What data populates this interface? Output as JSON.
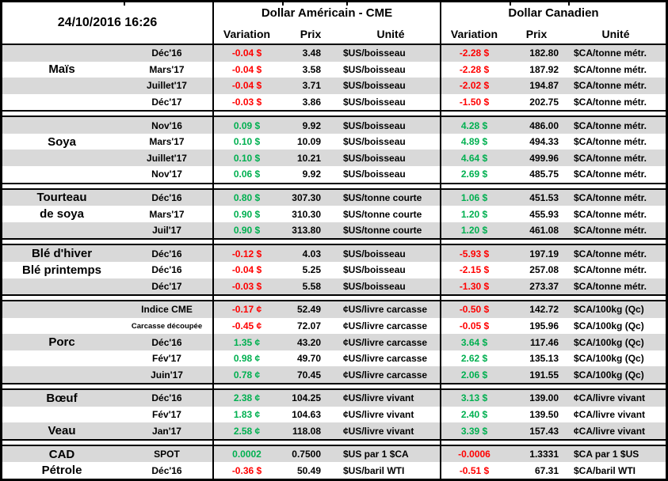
{
  "timestamp": "24/10/2016 16:26",
  "header": {
    "us_title": "Dollar Américain - CME",
    "ca_title": "Dollar Canadien",
    "columns": [
      "Variation",
      "Prix",
      "Unité"
    ]
  },
  "colors": {
    "positive": "#00B050",
    "negative": "#FF0000",
    "stripe": "#D9D9D9",
    "border": "#000000",
    "text": "#000000"
  },
  "sections": [
    {
      "rows": [
        {
          "cat": "",
          "month": "Déc'16",
          "uv": "-0.04 $",
          "ut": "down",
          "up": "3.48",
          "uu": "$US/boisseau",
          "cv": "-2.28 $",
          "ct": "down",
          "cp": "182.80",
          "cu": "$CA/tonne métr."
        },
        {
          "cat": "Maïs",
          "month": "Mars'17",
          "uv": "-0.04 $",
          "ut": "down",
          "up": "3.58",
          "uu": "$US/boisseau",
          "cv": "-2.28 $",
          "ct": "down",
          "cp": "187.92",
          "cu": "$CA/tonne métr."
        },
        {
          "cat": "",
          "month": "Juillet'17",
          "uv": "-0.04 $",
          "ut": "down",
          "up": "3.71",
          "uu": "$US/boisseau",
          "cv": "-2.02 $",
          "ct": "down",
          "cp": "194.87",
          "cu": "$CA/tonne métr."
        },
        {
          "cat": "",
          "month": "Déc'17",
          "uv": "-0.03 $",
          "ut": "down",
          "up": "3.86",
          "uu": "$US/boisseau",
          "cv": "-1.50 $",
          "ct": "down",
          "cp": "202.75",
          "cu": "$CA/tonne métr."
        }
      ]
    },
    {
      "rows": [
        {
          "cat": "",
          "month": "Nov'16",
          "uv": "0.09 $",
          "ut": "up",
          "up": "9.92",
          "uu": "$US/boisseau",
          "cv": "4.28 $",
          "ct": "up",
          "cp": "486.00",
          "cu": "$CA/tonne métr."
        },
        {
          "cat": "Soya",
          "month": "Mars'17",
          "uv": "0.10 $",
          "ut": "up",
          "up": "10.09",
          "uu": "$US/boisseau",
          "cv": "4.89 $",
          "ct": "up",
          "cp": "494.33",
          "cu": "$CA/tonne métr."
        },
        {
          "cat": "",
          "month": "Juillet'17",
          "uv": "0.10 $",
          "ut": "up",
          "up": "10.21",
          "uu": "$US/boisseau",
          "cv": "4.64 $",
          "ct": "up",
          "cp": "499.96",
          "cu": "$CA/tonne métr."
        },
        {
          "cat": "",
          "month": "Nov'17",
          "uv": "0.06 $",
          "ut": "up",
          "up": "9.92",
          "uu": "$US/boisseau",
          "cv": "2.69 $",
          "ct": "up",
          "cp": "485.75",
          "cu": "$CA/tonne métr."
        }
      ]
    },
    {
      "rows": [
        {
          "cat": "Tourteau",
          "month": "Déc'16",
          "uv": "0.80 $",
          "ut": "up",
          "up": "307.30",
          "uu": "$US/tonne courte",
          "cv": "1.06 $",
          "ct": "up",
          "cp": "451.53",
          "cu": "$CA/tonne métr."
        },
        {
          "cat": "de soya",
          "month": "Mars'17",
          "uv": "0.90 $",
          "ut": "up",
          "up": "310.30",
          "uu": "$US/tonne courte",
          "cv": "1.20 $",
          "ct": "up",
          "cp": "455.93",
          "cu": "$CA/tonne métr."
        },
        {
          "cat": "",
          "month": "Juil'17",
          "uv": "0.90 $",
          "ut": "up",
          "up": "313.80",
          "uu": "$US/tonne courte",
          "cv": "1.20 $",
          "ct": "up",
          "cp": "461.08",
          "cu": "$CA/tonne métr."
        }
      ]
    },
    {
      "rows": [
        {
          "cat": "Blé d'hiver",
          "month": "Déc'16",
          "uv": "-0.12 $",
          "ut": "down",
          "up": "4.03",
          "uu": "$US/boisseau",
          "cv": "-5.93 $",
          "ct": "down",
          "cp": "197.19",
          "cu": "$CA/tonne métr."
        },
        {
          "cat": "Blé printemps",
          "month": "Déc'16",
          "uv": "-0.04 $",
          "ut": "down",
          "up": "5.25",
          "uu": "$US/boisseau",
          "cv": "-2.15 $",
          "ct": "down",
          "cp": "257.08",
          "cu": "$CA/tonne métr."
        },
        {
          "cat": "",
          "month": "Déc'17",
          "uv": "-0.03 $",
          "ut": "down",
          "up": "5.58",
          "uu": "$US/boisseau",
          "cv": "-1.30 $",
          "ct": "down",
          "cp": "273.37",
          "cu": "$CA/tonne métr."
        }
      ]
    },
    {
      "rows": [
        {
          "cat": "",
          "month": "Indice CME",
          "uv": "-0.17 ¢",
          "ut": "down",
          "up": "52.49",
          "uu": "¢US/livre carcasse",
          "cv": "-0.50 $",
          "ct": "down",
          "cp": "142.72",
          "cu": "$CA/100kg (Qc)"
        },
        {
          "cat": "",
          "month": "Carcasse découpée",
          "small": true,
          "uv": "-0.45 ¢",
          "ut": "down",
          "up": "72.07",
          "uu": "¢US/livre carcasse",
          "cv": "-0.05 $",
          "ct": "down",
          "cp": "195.96",
          "cu": "$CA/100kg (Qc)"
        },
        {
          "cat": "Porc",
          "month": "Déc'16",
          "uv": "1.35 ¢",
          "ut": "up",
          "up": "43.20",
          "uu": "¢US/livre carcasse",
          "cv": "3.64 $",
          "ct": "up",
          "cp": "117.46",
          "cu": "$CA/100kg (Qc)"
        },
        {
          "cat": "",
          "month": "Fév'17",
          "uv": "0.98 ¢",
          "ut": "up",
          "up": "49.70",
          "uu": "¢US/livre carcasse",
          "cv": "2.62 $",
          "ct": "up",
          "cp": "135.13",
          "cu": "$CA/100kg (Qc)"
        },
        {
          "cat": "",
          "month": "Juin'17",
          "uv": "0.78 ¢",
          "ut": "up",
          "up": "70.45",
          "uu": "¢US/livre carcasse",
          "cv": "2.06 $",
          "ct": "up",
          "cp": "191.55",
          "cu": "$CA/100kg (Qc)"
        }
      ]
    },
    {
      "rows": [
        {
          "cat": "Bœuf",
          "month": "Déc'16",
          "uv": "2.38 ¢",
          "ut": "up",
          "up": "104.25",
          "uu": "¢US/livre vivant",
          "cv": "3.13 $",
          "ct": "up",
          "cp": "139.00",
          "cu": "¢CA/livre vivant"
        },
        {
          "cat": "",
          "month": "Fév'17",
          "uv": "1.83 ¢",
          "ut": "up",
          "up": "104.63",
          "uu": "¢US/livre vivant",
          "cv": "2.40 $",
          "ct": "up",
          "cp": "139.50",
          "cu": "¢CA/livre vivant"
        },
        {
          "cat": "Veau",
          "month": "Jan'17",
          "uv": "2.58 ¢",
          "ut": "up",
          "up": "118.08",
          "uu": "¢US/livre vivant",
          "cv": "3.39 $",
          "ct": "up",
          "cp": "157.43",
          "cu": "¢CA/livre vivant"
        }
      ]
    },
    {
      "rows": [
        {
          "cat": "CAD",
          "month": "SPOT",
          "uv": "0.0002",
          "ut": "up",
          "up": "0.7500",
          "uu": "$US par 1 $CA",
          "cv": "-0.0006",
          "ct": "down",
          "cp": "1.3331",
          "cu": "$CA par 1 $US"
        },
        {
          "cat": "Pétrole",
          "month": "Déc'16",
          "uv": "-0.36 $",
          "ut": "down",
          "up": "50.49",
          "uu": "$US/baril WTI",
          "cv": "-0.51 $",
          "ct": "down",
          "cp": "67.31",
          "cu": "$CA/baril WTI"
        }
      ]
    }
  ]
}
